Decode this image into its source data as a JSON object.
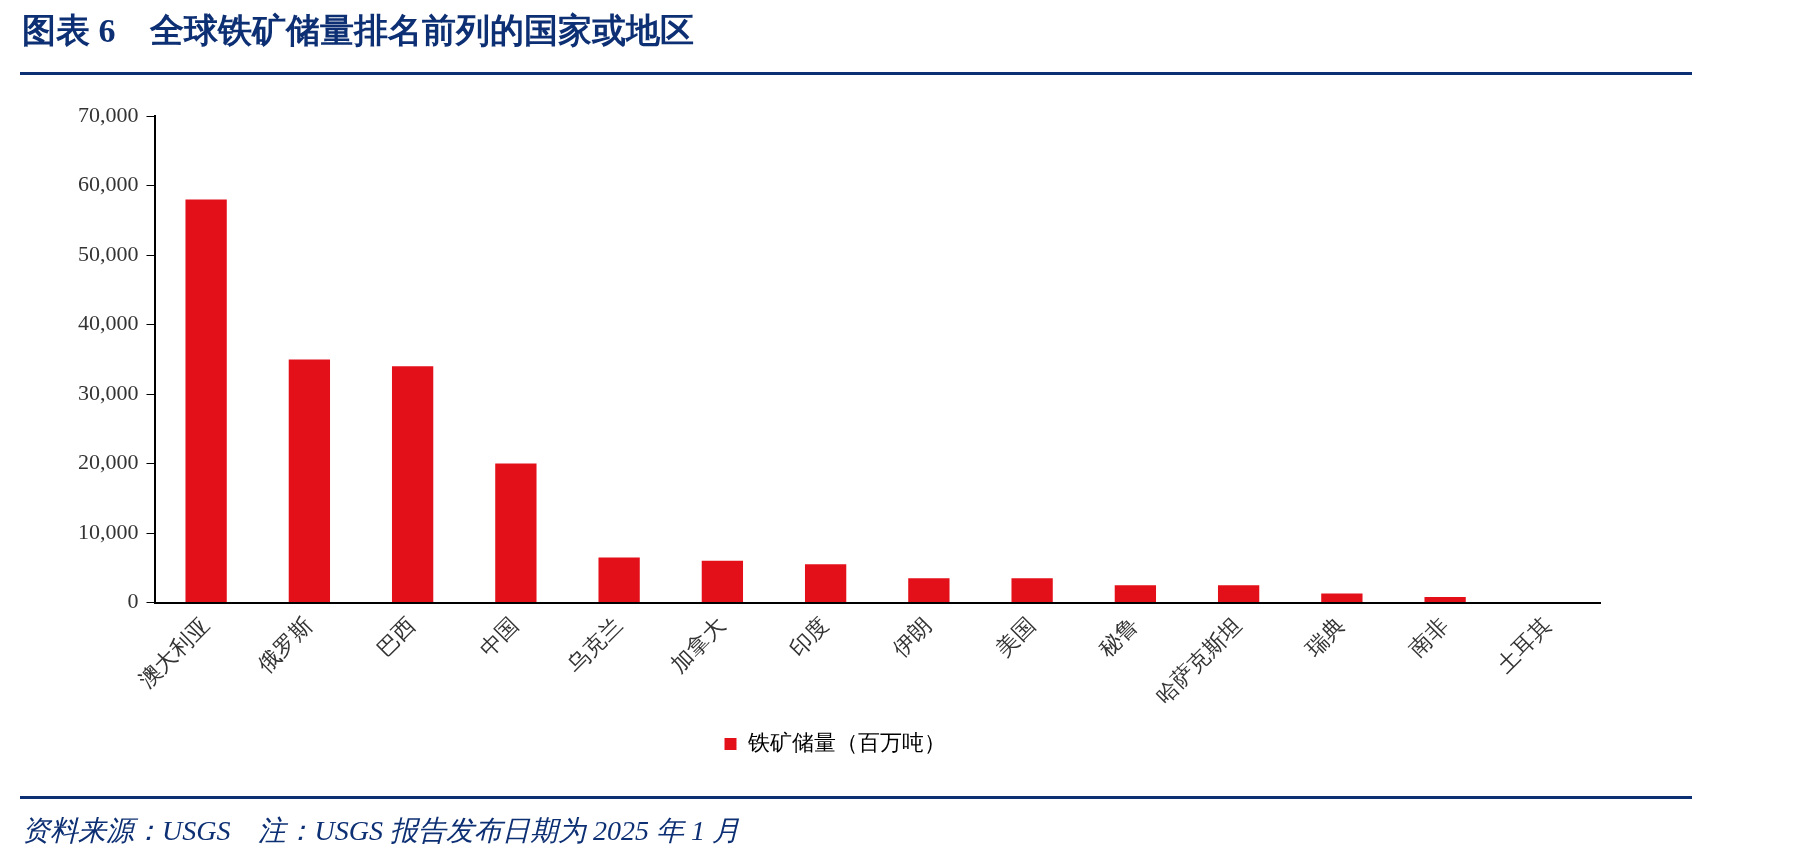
{
  "chart_data": {
    "type": "bar",
    "title": "图表 6　全球铁矿储量排名前列的国家或地区",
    "categories": [
      "澳大利亚",
      "俄罗斯",
      "巴西",
      "中国",
      "乌克兰",
      "加拿大",
      "印度",
      "伊朗",
      "美国",
      "秘鲁",
      "哈萨克斯坦",
      "瑞典",
      "南非",
      "土耳其"
    ],
    "series": [
      {
        "name": "铁矿储量（百万吨）",
        "color": "#e3101a",
        "values": [
          58000,
          35000,
          34000,
          20000,
          6500,
          6000,
          5500,
          3500,
          3500,
          2500,
          2500,
          1300,
          800,
          null
        ]
      }
    ],
    "ylim": [
      0,
      70000
    ],
    "yticks": [
      0,
      {
        "value": 10000,
        "label": "10,000"
      },
      {
        "value": 20000,
        "label": "20,000"
      },
      {
        "value": 30000,
        "label": "30,000"
      },
      {
        "value": 40000,
        "label": "40,000"
      },
      {
        "value": 50000,
        "label": "50,000"
      },
      {
        "value": 60000,
        "label": "60,000"
      },
      {
        "value": 70000,
        "label": "70,000"
      }
    ],
    "grid": false,
    "legend": "bottom",
    "annotations": [
      "资料来源：USGS　注：USGS 报告发布日期为 2025 年 1 月"
    ]
  }
}
